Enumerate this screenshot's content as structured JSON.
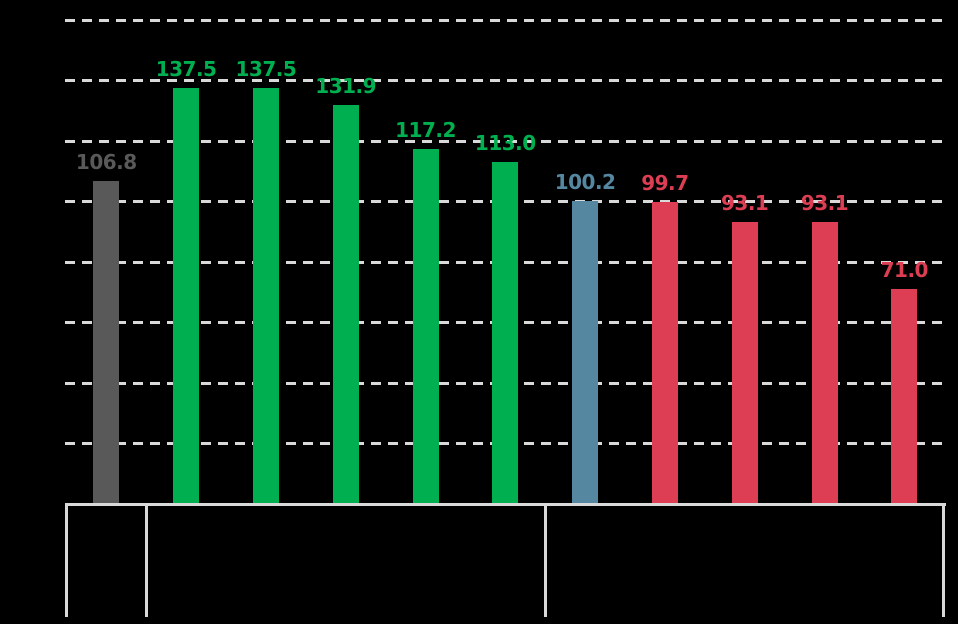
{
  "background_color": "#000000",
  "chart_data": {
    "type": "bar",
    "bars": [
      {
        "label": "106.8",
        "value": 106.8,
        "color": "gray"
      },
      {
        "label": "137.5",
        "value": 137.5,
        "color": "green"
      },
      {
        "label": "137.5",
        "value": 137.5,
        "color": "green"
      },
      {
        "label": "131.9",
        "value": 131.9,
        "color": "green"
      },
      {
        "label": "117.2",
        "value": 117.2,
        "color": "green"
      },
      {
        "label": "113.0",
        "value": 113.0,
        "color": "green"
      },
      {
        "label": "100.2",
        "value": 100.2,
        "color": "blue"
      },
      {
        "label": "99.7",
        "value": 99.7,
        "color": "red"
      },
      {
        "label": "93.1",
        "value": 93.1,
        "color": "red"
      },
      {
        "label": "93.1",
        "value": 93.1,
        "color": "red"
      },
      {
        "label": "71.0",
        "value": 71.0,
        "color": "red"
      }
    ],
    "palette": {
      "gray": "#595959",
      "green": "#00B050",
      "blue": "#5588A0",
      "red": "#DD3E53"
    },
    "value_labels": {
      "position": "above-bar",
      "color": "matches-bar"
    },
    "value_axis": {
      "min": 0,
      "max": 160,
      "gridline_interval": 20,
      "gridline_values": [
        20,
        40,
        60,
        80,
        100,
        120,
        140,
        160
      ],
      "gridline_style": "dashed",
      "gridline_color": "#D9D9D9",
      "tick_labels_visible": false
    },
    "category_axis": {
      "baseline_visible": true,
      "axis_color": "#D9D9D9",
      "labels_visible": false,
      "group_divider_after_bar_index": [
        0,
        5
      ]
    },
    "legend": {
      "visible": false
    },
    "title": "",
    "background": "#000000"
  }
}
